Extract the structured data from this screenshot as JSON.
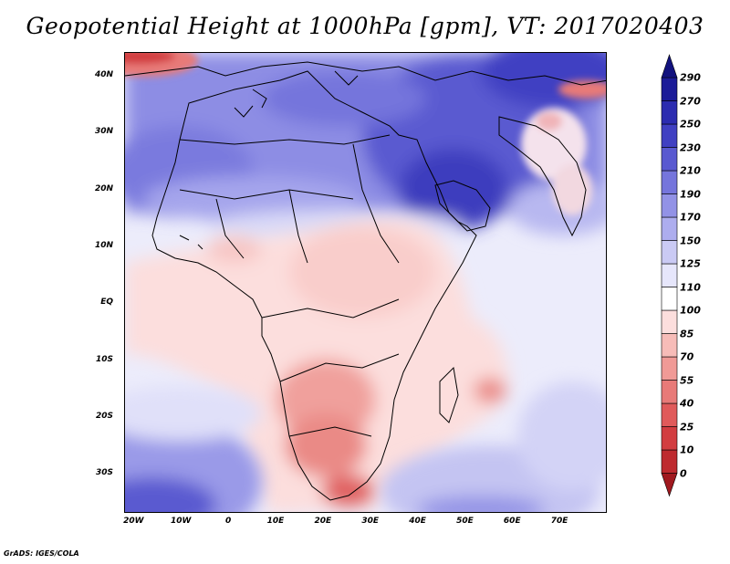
{
  "title": "Geopotential Height at 1000hPa [gpm], VT: 2017020403",
  "credit": "GrADS: IGES/COLA",
  "map": {
    "lon_range": [
      -22,
      80
    ],
    "lat_range": [
      -37,
      44
    ],
    "y_ticks": [
      {
        "lat": 40,
        "label": "40N"
      },
      {
        "lat": 30,
        "label": "30N"
      },
      {
        "lat": 20,
        "label": "20N"
      },
      {
        "lat": 10,
        "label": "10N"
      },
      {
        "lat": 0,
        "label": "EQ"
      },
      {
        "lat": -10,
        "label": "10S"
      },
      {
        "lat": -20,
        "label": "20S"
      },
      {
        "lat": -30,
        "label": "30S"
      }
    ],
    "x_ticks": [
      {
        "lon": -20,
        "label": "20W"
      },
      {
        "lon": -10,
        "label": "10W"
      },
      {
        "lon": 0,
        "label": "0"
      },
      {
        "lon": 10,
        "label": "10E"
      },
      {
        "lon": 20,
        "label": "20E"
      },
      {
        "lon": 30,
        "label": "30E"
      },
      {
        "lon": 40,
        "label": "40E"
      },
      {
        "lon": 50,
        "label": "50E"
      },
      {
        "lon": 60,
        "label": "60E"
      },
      {
        "lon": 70,
        "label": "70E"
      }
    ]
  },
  "colorbar": {
    "levels": [
      "0",
      "10",
      "25",
      "40",
      "55",
      "70",
      "85",
      "100",
      "110",
      "125",
      "150",
      "170",
      "190",
      "210",
      "230",
      "250",
      "270",
      "290"
    ],
    "colors": [
      "#a0191f",
      "#be2a2f",
      "#d23d40",
      "#e05a5a",
      "#e87a78",
      "#f09a96",
      "#f7bcb8",
      "#fcdedd",
      "#ffffff",
      "#e6e6fb",
      "#cacaf4",
      "#adadee",
      "#9292e6",
      "#7575dc",
      "#5959d0",
      "#4040c2",
      "#2c2cb0",
      "#1b1b98",
      "#12127e"
    ]
  }
}
